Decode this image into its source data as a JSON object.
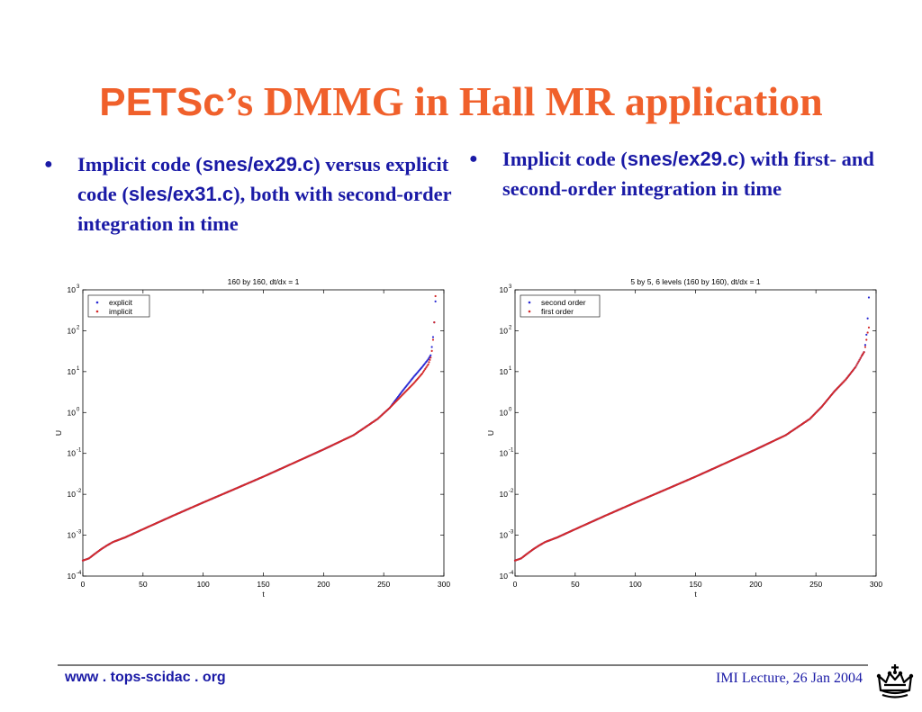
{
  "slide": {
    "title_sans": "PETSc",
    "title_rest": "’s DMMG in Hall MR application",
    "bullets": [
      {
        "pre": "Implicit code (",
        "code1": "snes/ex29.c",
        "mid": ") versus explicit code (",
        "code2": "sles/ex31.c",
        "post": "), both with second-order integration in time"
      },
      {
        "pre": "Implicit code (",
        "code1": "snes/ex29.c",
        "post": ") with first- and second-order integration in time"
      }
    ],
    "footer_url": "www . tops-scidac . org",
    "footer_lecture": "IMI Lecture, 26 Jan 2004",
    "logo_icon": "crown-icon"
  },
  "chart_data": [
    {
      "type": "scatter",
      "title": "160 by 160, dt/dx = 1",
      "xlabel": "t",
      "ylabel": "U",
      "xlim": [
        0,
        300
      ],
      "ylim": [
        0.0001,
        1000
      ],
      "yscale": "log",
      "xticks": [
        0,
        50,
        100,
        150,
        200,
        250,
        300
      ],
      "ytick_exponents": [
        -4,
        -3,
        -2,
        -1,
        0,
        1,
        2,
        3
      ],
      "ytick_base": "10",
      "grid": false,
      "legend": "top-left",
      "series": [
        {
          "name": "explicit",
          "color": "#2a2ad4",
          "points": [
            [
              0,
              0.00024
            ],
            [
              5,
              0.00027
            ],
            [
              10,
              0.00035
            ],
            [
              15,
              0.00045
            ],
            [
              20,
              0.00056
            ],
            [
              25,
              0.00068
            ],
            [
              35,
              0.00088
            ],
            [
              50,
              0.0014
            ],
            [
              75,
              0.003
            ],
            [
              100,
              0.0063
            ],
            [
              125,
              0.013
            ],
            [
              150,
              0.027
            ],
            [
              175,
              0.058
            ],
            [
              200,
              0.125
            ],
            [
              225,
              0.28
            ],
            [
              245,
              0.7
            ],
            [
              255,
              1.3
            ],
            [
              265,
              3.2
            ],
            [
              275,
              7.5
            ],
            [
              282,
              13
            ],
            [
              287,
              20
            ],
            [
              289,
              25
            ],
            [
              290,
              40
            ],
            [
              291,
              70
            ],
            [
              292,
              160
            ],
            [
              293,
              520
            ]
          ]
        },
        {
          "name": "implicit",
          "color": "#d42a2a",
          "points": [
            [
              0,
              0.00024
            ],
            [
              5,
              0.00027
            ],
            [
              10,
              0.00035
            ],
            [
              15,
              0.00045
            ],
            [
              20,
              0.00056
            ],
            [
              25,
              0.00068
            ],
            [
              35,
              0.00088
            ],
            [
              50,
              0.0014
            ],
            [
              75,
              0.003
            ],
            [
              100,
              0.0063
            ],
            [
              125,
              0.013
            ],
            [
              150,
              0.027
            ],
            [
              175,
              0.058
            ],
            [
              200,
              0.125
            ],
            [
              225,
              0.28
            ],
            [
              245,
              0.7
            ],
            [
              255,
              1.3
            ],
            [
              265,
              2.6
            ],
            [
              275,
              5.2
            ],
            [
              282,
              9
            ],
            [
              287,
              15
            ],
            [
              289,
              22
            ],
            [
              290,
              32
            ],
            [
              291,
              60
            ],
            [
              292,
              160
            ],
            [
              293,
              700
            ]
          ]
        }
      ]
    },
    {
      "type": "scatter",
      "title": "5 by 5, 6 levels (160 by 160), dt/dx = 1",
      "xlabel": "t",
      "ylabel": "U",
      "xlim": [
        0,
        300
      ],
      "ylim": [
        0.0001,
        1000
      ],
      "yscale": "log",
      "xticks": [
        0,
        50,
        100,
        150,
        200,
        250,
        300
      ],
      "ytick_exponents": [
        -4,
        -3,
        -2,
        -1,
        0,
        1,
        2,
        3
      ],
      "ytick_base": "10",
      "grid": false,
      "legend": "top-left",
      "series": [
        {
          "name": "second order",
          "color": "#2a2ad4",
          "points": [
            [
              0,
              0.00024
            ],
            [
              5,
              0.00027
            ],
            [
              10,
              0.00035
            ],
            [
              15,
              0.00045
            ],
            [
              20,
              0.00056
            ],
            [
              25,
              0.00068
            ],
            [
              35,
              0.00088
            ],
            [
              50,
              0.0014
            ],
            [
              75,
              0.003
            ],
            [
              100,
              0.0063
            ],
            [
              125,
              0.013
            ],
            [
              150,
              0.027
            ],
            [
              175,
              0.058
            ],
            [
              200,
              0.125
            ],
            [
              225,
              0.28
            ],
            [
              245,
              0.7
            ],
            [
              255,
              1.4
            ],
            [
              265,
              3.2
            ],
            [
              275,
              6.5
            ],
            [
              283,
              13
            ],
            [
              288,
              24
            ],
            [
              290,
              30
            ],
            [
              291,
              45
            ],
            [
              292,
              80
            ],
            [
              293,
              200
            ],
            [
              294,
              650
            ]
          ]
        },
        {
          "name": "first order",
          "color": "#d42a2a",
          "points": [
            [
              0,
              0.00024
            ],
            [
              5,
              0.00027
            ],
            [
              10,
              0.00035
            ],
            [
              15,
              0.00045
            ],
            [
              20,
              0.00056
            ],
            [
              25,
              0.00068
            ],
            [
              35,
              0.00088
            ],
            [
              50,
              0.0014
            ],
            [
              75,
              0.003
            ],
            [
              100,
              0.0063
            ],
            [
              125,
              0.013
            ],
            [
              150,
              0.027
            ],
            [
              175,
              0.058
            ],
            [
              200,
              0.125
            ],
            [
              225,
              0.28
            ],
            [
              245,
              0.7
            ],
            [
              255,
              1.4
            ],
            [
              265,
              3.2
            ],
            [
              275,
              6.5
            ],
            [
              283,
              13
            ],
            [
              288,
              24
            ],
            [
              290,
              30
            ],
            [
              291,
              40
            ],
            [
              292,
              60
            ],
            [
              293,
              90
            ],
            [
              294,
              120
            ]
          ]
        }
      ]
    }
  ]
}
